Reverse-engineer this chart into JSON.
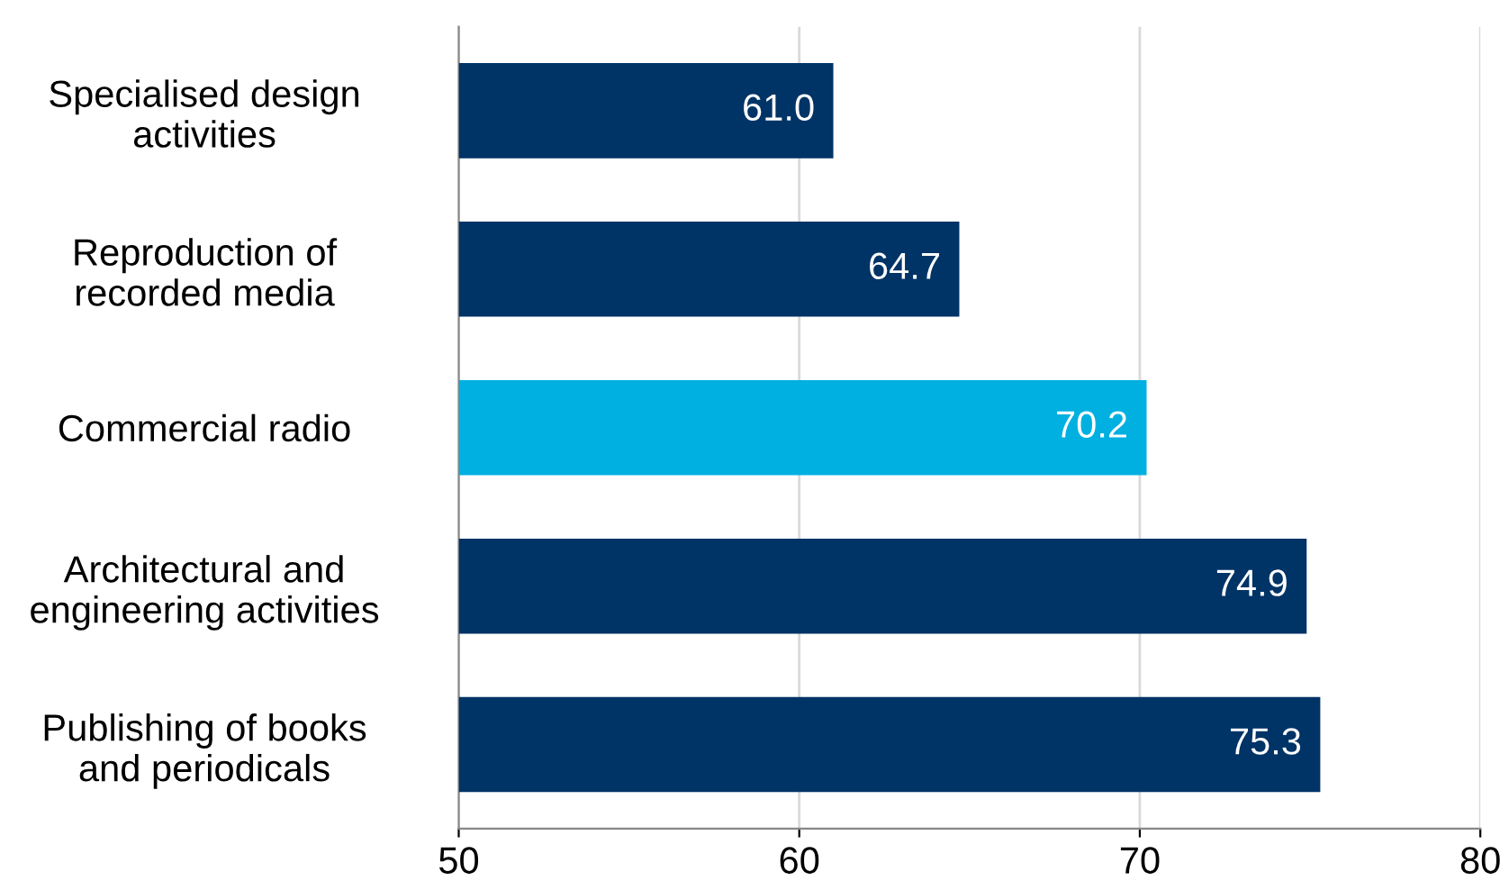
{
  "chart_data": {
    "type": "bar",
    "orientation": "horizontal",
    "categories": [
      "Specialised design\nactivities",
      "Reproduction of\nrecorded media",
      "Commercial radio",
      "Architectural and\nengineering activities",
      "Publishing of books\nand periodicals"
    ],
    "values": [
      61.0,
      64.7,
      70.2,
      74.9,
      75.3
    ],
    "colors": [
      "#003366",
      "#003366",
      "#00b0e0",
      "#003366",
      "#003366"
    ],
    "xlim": [
      50,
      80
    ],
    "xticks": [
      50,
      60,
      70,
      80
    ],
    "grid": "x",
    "value_labels": [
      "61.0",
      "64.7",
      "70.2",
      "74.9",
      "75.3"
    ]
  }
}
